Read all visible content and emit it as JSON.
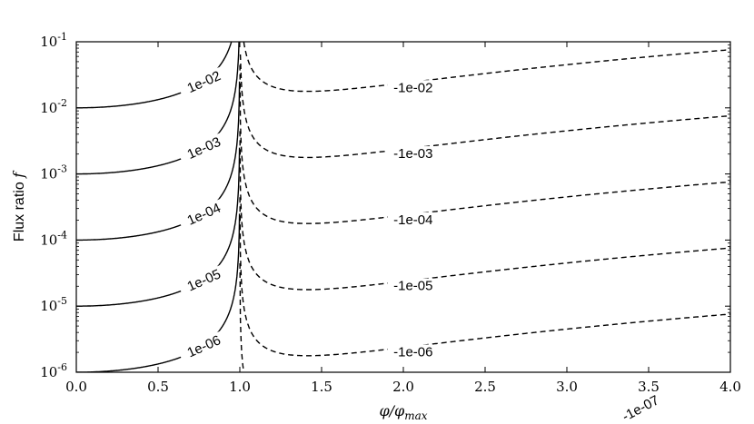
{
  "chart_data": {
    "type": "line",
    "title": "",
    "xlabel": "φ/φmax",
    "ylabel_text": "Flux ratio ",
    "ylabel_symbol": "f",
    "xlim": [
      0.0,
      4.0
    ],
    "ylim_log10": [
      -6,
      -1
    ],
    "y_scale": "log",
    "grid": false,
    "legend": "none",
    "x_ticks": [
      "0.0",
      "0.5",
      "1.0",
      "1.5",
      "2.0",
      "2.5",
      "3.0",
      "3.5",
      "4.0"
    ],
    "x_tick_values": [
      0.0,
      0.5,
      1.0,
      1.5,
      2.0,
      2.5,
      3.0,
      3.5,
      4.0
    ],
    "y_tick_exponents": [
      "-6",
      "-5",
      "-4",
      "-3",
      "-2",
      "-1"
    ],
    "y_tick_values": [
      1e-06,
      1e-05,
      0.0001,
      0.001,
      0.01,
      0.1
    ],
    "y_tick_base": "10",
    "series": [
      {
        "label": "1e-06",
        "style": "solid",
        "level": 1e-06,
        "side": "left"
      },
      {
        "label": "1e-05",
        "style": "solid",
        "level": 1e-05,
        "side": "left"
      },
      {
        "label": "1e-04",
        "style": "solid",
        "level": 0.0001,
        "side": "left"
      },
      {
        "label": "1e-03",
        "style": "solid",
        "level": 0.001,
        "side": "left"
      },
      {
        "label": "1e-02",
        "style": "solid",
        "level": 0.01,
        "side": "left"
      },
      {
        "label": "-1e-06",
        "style": "dashed",
        "level": 1e-06,
        "side": "right",
        "min_f": 2e-06
      },
      {
        "label": "-1e-05",
        "style": "dashed",
        "level": 1e-05,
        "side": "right",
        "min_f": 2e-05
      },
      {
        "label": "-1e-04",
        "style": "dashed",
        "level": 0.0001,
        "side": "right",
        "min_f": 0.0002
      },
      {
        "label": "-1e-03",
        "style": "dashed",
        "level": 0.001,
        "side": "right",
        "min_f": 0.002
      },
      {
        "label": "-1e-02",
        "style": "dashed",
        "level": 0.01,
        "side": "right",
        "min_f": 0.02
      },
      {
        "label": "-1e-07",
        "style": "dashed",
        "level": 1e-07,
        "side": "right",
        "min_f": 2e-07
      }
    ],
    "colors": {
      "line": "#000000",
      "background": "#ffffff"
    }
  }
}
